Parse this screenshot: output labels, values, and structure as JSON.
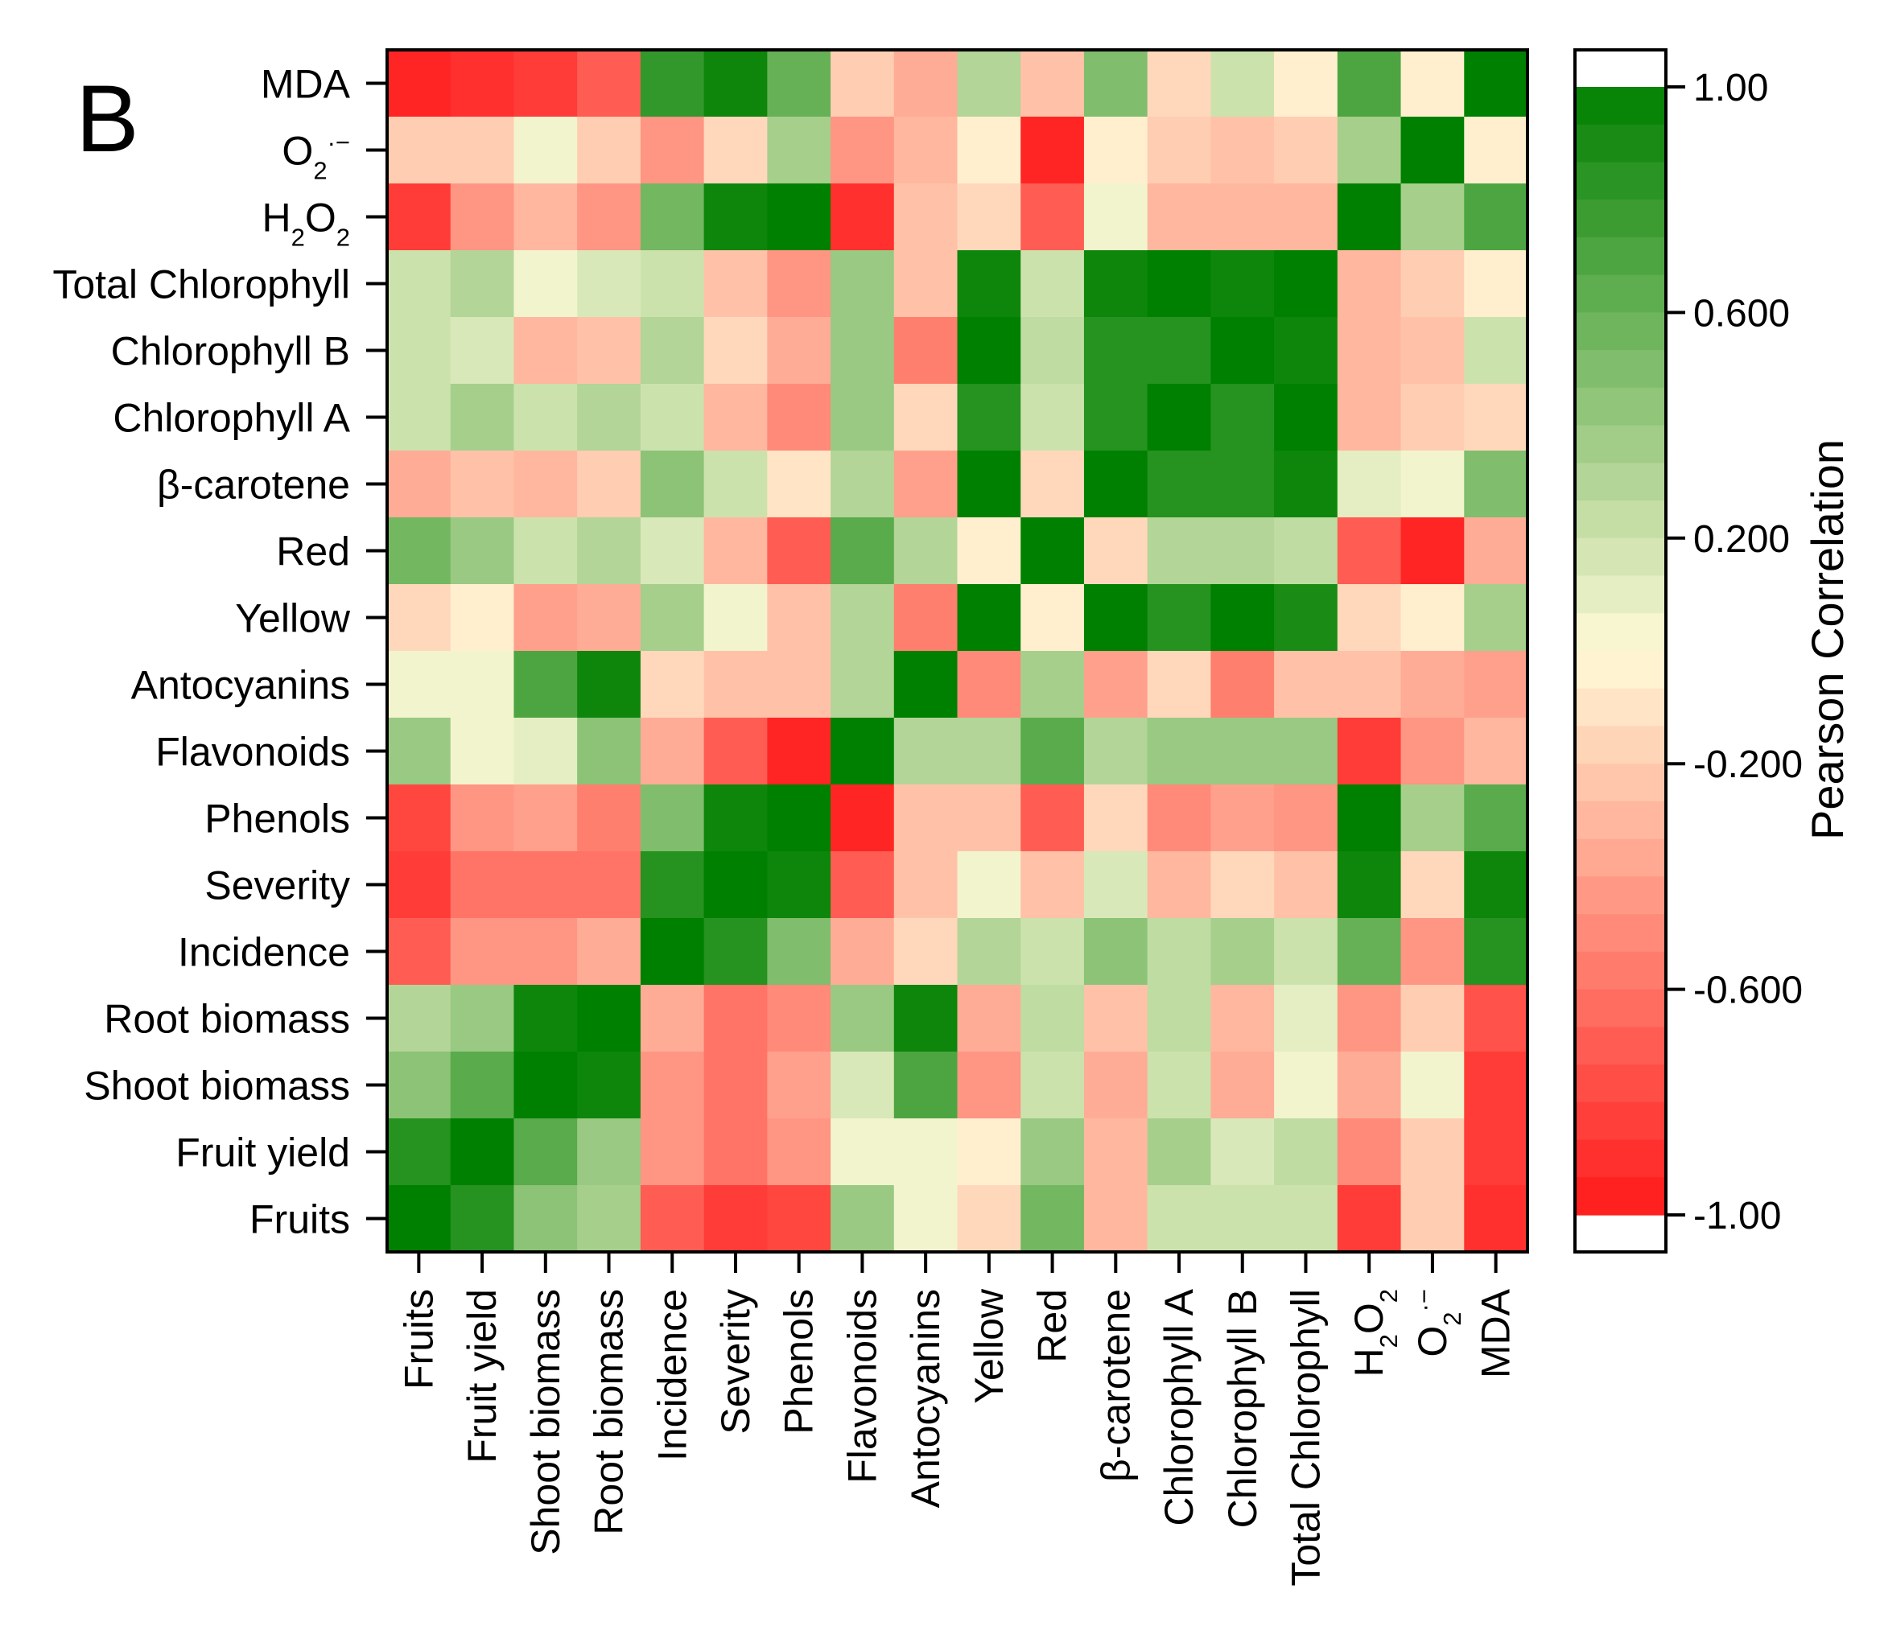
{
  "panel_label": "B",
  "chart_data": {
    "type": "heatmap",
    "variables": [
      "Fruits",
      "Fruit yield",
      "Shoot biomass",
      "Root biomass",
      "Incidence",
      "Severity",
      "Phenols",
      "Flavonoids",
      "Antocyanins",
      "Yellow",
      "Red",
      "β-carotene",
      "Chlorophyll A",
      "Chlorophyll B",
      "Total Chlorophyll",
      "H2O2",
      "O2·−",
      "MDA"
    ],
    "columns": [
      "Fruits",
      "Fruit yield",
      "Shoot biomass",
      "Root biomass",
      "Incidence",
      "Severity",
      "Phenols",
      "Flavonoids",
      "Antocyanins",
      "Yellow",
      "Red",
      "β-carotene",
      "Chlorophyll A",
      "Chlorophyll B",
      "Total Chlorophyll",
      "H2O2",
      "O2·−",
      "MDA"
    ],
    "rows_top_to_bottom": [
      "MDA",
      "O2·−",
      "H2O2",
      "Total Chlorophyll",
      "Chlorophyll B",
      "Chlorophyll A",
      "β-carotene",
      "Red",
      "Yellow",
      "Antocyanins",
      "Flavonoids",
      "Phenols",
      "Severity",
      "Incidence",
      "Root biomass",
      "Shoot biomass",
      "Fruit yield",
      "Fruits"
    ],
    "values": [
      [
        -0.95,
        -0.9,
        -0.85,
        -0.7,
        0.8,
        0.95,
        0.6,
        -0.2,
        -0.35,
        0.3,
        -0.25,
        0.5,
        -0.15,
        0.2,
        -0.05,
        0.7,
        -0.05,
        1.0
      ],
      [
        -0.2,
        -0.2,
        0.05,
        -0.2,
        -0.45,
        -0.15,
        0.35,
        -0.45,
        -0.3,
        -0.05,
        -0.95,
        -0.05,
        -0.2,
        -0.25,
        -0.2,
        0.35,
        1.0,
        -0.05
      ],
      [
        -0.85,
        -0.45,
        -0.3,
        -0.45,
        0.55,
        0.95,
        1.0,
        -0.9,
        -0.25,
        -0.15,
        -0.7,
        0.05,
        -0.3,
        -0.3,
        -0.3,
        1.0,
        0.35,
        0.7
      ],
      [
        0.2,
        0.3,
        0.05,
        0.15,
        0.2,
        -0.25,
        -0.45,
        0.4,
        -0.25,
        0.95,
        0.2,
        0.95,
        1.0,
        0.95,
        1.0,
        -0.3,
        -0.2,
        -0.05
      ],
      [
        0.2,
        0.15,
        -0.3,
        -0.25,
        0.3,
        -0.15,
        -0.35,
        0.4,
        -0.55,
        1.0,
        0.25,
        0.85,
        0.85,
        1.0,
        0.95,
        -0.3,
        -0.25,
        0.2
      ],
      [
        0.2,
        0.35,
        0.2,
        0.3,
        0.2,
        -0.3,
        -0.5,
        0.4,
        -0.15,
        0.85,
        0.2,
        0.85,
        1.0,
        0.85,
        1.0,
        -0.3,
        -0.2,
        -0.15
      ],
      [
        -0.35,
        -0.25,
        -0.3,
        -0.2,
        0.45,
        0.2,
        -0.1,
        0.3,
        -0.4,
        1.0,
        -0.15,
        1.0,
        0.85,
        0.85,
        0.95,
        0.1,
        0.05,
        0.5
      ],
      [
        0.55,
        0.4,
        0.2,
        0.3,
        0.15,
        -0.3,
        -0.7,
        0.65,
        0.3,
        -0.05,
        1.0,
        -0.15,
        0.3,
        0.3,
        0.25,
        -0.7,
        -0.95,
        -0.35
      ],
      [
        -0.15,
        -0.05,
        -0.4,
        -0.35,
        0.35,
        0.05,
        -0.25,
        0.3,
        -0.55,
        1.0,
        -0.05,
        1.0,
        0.85,
        1.0,
        0.9,
        -0.15,
        -0.05,
        0.35
      ],
      [
        0.05,
        0.05,
        0.7,
        0.95,
        -0.15,
        -0.25,
        -0.25,
        0.3,
        1.0,
        -0.5,
        0.35,
        -0.4,
        -0.15,
        -0.55,
        -0.25,
        -0.25,
        -0.35,
        -0.4
      ],
      [
        0.4,
        0.05,
        0.1,
        0.45,
        -0.35,
        -0.7,
        -0.95,
        1.0,
        0.3,
        0.3,
        0.65,
        0.3,
        0.4,
        0.4,
        0.4,
        -0.85,
        -0.45,
        -0.3
      ],
      [
        -0.8,
        -0.45,
        -0.4,
        -0.55,
        0.5,
        0.95,
        1.0,
        -0.95,
        -0.25,
        -0.25,
        -0.7,
        -0.15,
        -0.5,
        -0.4,
        -0.45,
        1.0,
        0.35,
        0.65
      ],
      [
        -0.85,
        -0.6,
        -0.6,
        -0.6,
        0.85,
        1.0,
        0.95,
        -0.7,
        -0.25,
        0.05,
        -0.25,
        0.15,
        -0.3,
        -0.15,
        -0.25,
        0.95,
        -0.15,
        0.95
      ],
      [
        -0.7,
        -0.45,
        -0.45,
        -0.35,
        1.0,
        0.85,
        0.5,
        -0.35,
        -0.15,
        0.3,
        0.2,
        0.45,
        0.25,
        0.35,
        0.2,
        0.6,
        -0.45,
        0.85
      ],
      [
        0.3,
        0.4,
        0.95,
        1.0,
        -0.35,
        -0.6,
        -0.5,
        0.4,
        0.95,
        -0.35,
        0.25,
        -0.25,
        0.25,
        -0.3,
        0.1,
        -0.45,
        -0.2,
        -0.75
      ],
      [
        0.45,
        0.65,
        1.0,
        0.95,
        -0.45,
        -0.6,
        -0.4,
        0.15,
        0.7,
        -0.45,
        0.2,
        -0.35,
        0.2,
        -0.35,
        0.05,
        -0.35,
        0.05,
        -0.85
      ],
      [
        0.85,
        1.0,
        0.65,
        0.4,
        -0.45,
        -0.6,
        -0.45,
        0.05,
        0.05,
        -0.05,
        0.4,
        -0.3,
        0.35,
        0.15,
        0.25,
        -0.5,
        -0.2,
        -0.85
      ],
      [
        1.0,
        0.85,
        0.45,
        0.35,
        -0.7,
        -0.85,
        -0.8,
        0.4,
        0.05,
        -0.15,
        0.55,
        -0.3,
        0.2,
        0.2,
        0.2,
        -0.85,
        -0.2,
        -0.9
      ]
    ],
    "colorbar": {
      "label": "Pearson Correlation",
      "range": [
        -1.0,
        1.0
      ],
      "ticks": [
        1.0,
        0.6,
        0.2,
        -0.2,
        -0.6,
        -1.0
      ],
      "tick_labels": [
        "1.00",
        "0.600",
        "0.200",
        "-0.200",
        "-0.600",
        "-1.00"
      ],
      "low_color": "#ff1a1a",
      "mid_color": "#fffad8",
      "high_color": "#008000",
      "out_of_range_color": "#ffffff"
    }
  }
}
